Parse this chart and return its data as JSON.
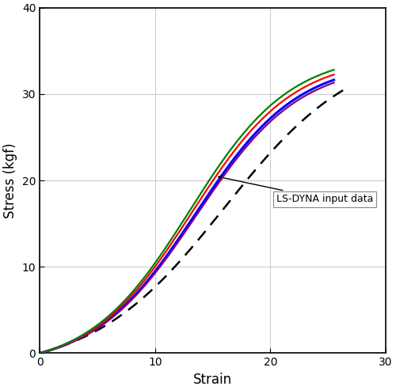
{
  "xlim": [
    0,
    30
  ],
  "ylim": [
    0,
    40
  ],
  "xticks": [
    0,
    10,
    20,
    30
  ],
  "yticks": [
    0,
    10,
    20,
    30,
    40
  ],
  "xlabel": "Strain",
  "ylabel": "Stress (kgf)",
  "annotation_text": "LS-DYNA input data",
  "dashed_color": "black",
  "background_color": "#ffffff",
  "figsize": [
    5.0,
    4.93
  ],
  "dpi": 100,
  "solid_end_x": 25.5,
  "dash_end_x": 26.5
}
